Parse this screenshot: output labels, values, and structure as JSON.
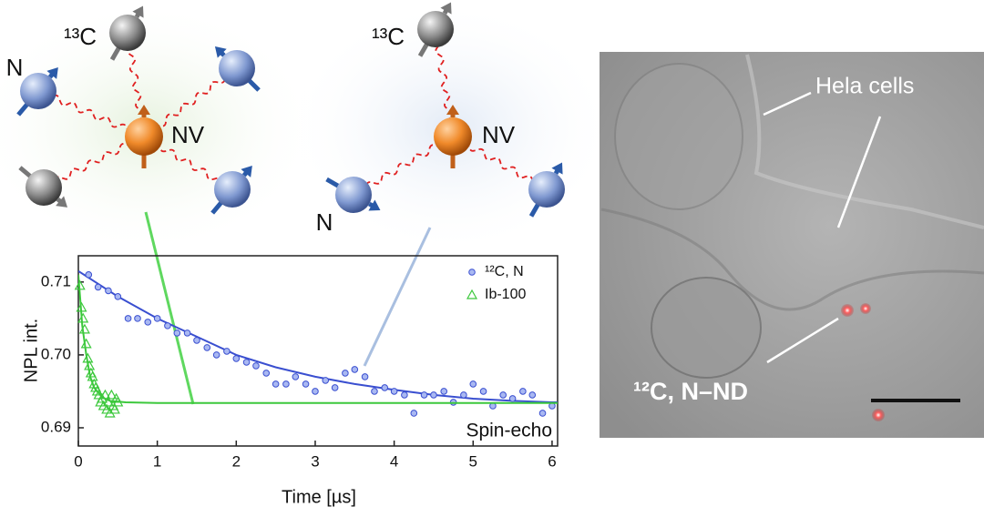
{
  "diagrams": [
    {
      "labels": {
        "carbon": "¹³C",
        "nitrogen": "N",
        "center": "NV"
      }
    },
    {
      "labels": {
        "carbon": "¹³C",
        "nitrogen": "N",
        "center": "NV"
      }
    }
  ],
  "micrograph": {
    "cells_label": "Hela cells",
    "particle_label": "¹²C, N–ND"
  },
  "chart_data": {
    "type": "scatter",
    "x_label": "Time [µs]",
    "y_label": "NPL int.",
    "annotation": "Spin-echo",
    "legend": "upper right",
    "xlim": [
      0,
      6.07
    ],
    "ylim": [
      0.6875,
      0.7136
    ],
    "xticks": [
      0,
      1,
      2,
      3,
      4,
      5,
      6
    ],
    "yticks": [
      0.69,
      {
        "value": 0.7,
        "label": "0.70"
      },
      0.71
    ],
    "series": [
      {
        "name": "¹²C, N",
        "color": "#3a4fd0",
        "marker": "circle",
        "x": [
          0.13,
          0.25,
          0.38,
          0.5,
          0.63,
          0.75,
          0.88,
          1.0,
          1.13,
          1.25,
          1.38,
          1.5,
          1.63,
          1.75,
          1.88,
          2.0,
          2.13,
          2.25,
          2.38,
          2.5,
          2.63,
          2.75,
          2.88,
          3.0,
          3.13,
          3.25,
          3.38,
          3.5,
          3.63,
          3.75,
          3.88,
          4.0,
          4.13,
          4.25,
          4.38,
          4.5,
          4.63,
          4.75,
          4.88,
          5.0,
          5.13,
          5.25,
          5.38,
          5.5,
          5.63,
          5.75,
          5.88,
          6.0
        ],
        "values": [
          0.711,
          0.7093,
          0.7088,
          0.708,
          0.705,
          0.705,
          0.7045,
          0.705,
          0.704,
          0.703,
          0.703,
          0.702,
          0.701,
          0.7,
          0.7005,
          0.6995,
          0.699,
          0.6985,
          0.6975,
          0.696,
          0.696,
          0.697,
          0.696,
          0.695,
          0.6965,
          0.6955,
          0.6975,
          0.698,
          0.697,
          0.695,
          0.6955,
          0.695,
          0.6945,
          0.692,
          0.6945,
          0.6945,
          0.695,
          0.6935,
          0.6945,
          0.696,
          0.695,
          0.693,
          0.6945,
          0.694,
          0.695,
          0.6945,
          0.692,
          0.693
        ],
        "fit": {
          "x": [
            0,
            0.5,
            1,
            1.5,
            2,
            2.5,
            3,
            3.5,
            4,
            4.5,
            5,
            5.5,
            6,
            6.07
          ],
          "values": [
            0.7115,
            0.708,
            0.705,
            0.7025,
            0.7,
            0.6983,
            0.697,
            0.696,
            0.6952,
            0.6945,
            0.694,
            0.6937,
            0.6935,
            0.6935
          ]
        }
      },
      {
        "name": "Ib-100",
        "color": "#3cc83c",
        "marker": "triangle",
        "x": [
          0.02,
          0.04,
          0.06,
          0.08,
          0.1,
          0.12,
          0.14,
          0.16,
          0.18,
          0.2,
          0.22,
          0.24,
          0.26,
          0.28,
          0.3,
          0.32,
          0.34,
          0.36,
          0.38,
          0.4,
          0.42,
          0.44,
          0.46,
          0.48,
          0.5
        ],
        "values": [
          0.7095,
          0.7065,
          0.705,
          0.7035,
          0.7015,
          0.6995,
          0.6985,
          0.6975,
          0.697,
          0.696,
          0.6955,
          0.695,
          0.6945,
          0.6935,
          0.694,
          0.693,
          0.6945,
          0.6925,
          0.6935,
          0.692,
          0.6945,
          0.693,
          0.6925,
          0.694,
          0.6935
        ],
        "fit": {
          "x": [
            0,
            0.05,
            0.1,
            0.15,
            0.2,
            0.3,
            0.4,
            0.6,
            1,
            6.07
          ],
          "values": [
            0.711,
            0.704,
            0.7,
            0.697,
            0.6955,
            0.6942,
            0.6937,
            0.6935,
            0.6934,
            0.6934
          ]
        }
      }
    ]
  }
}
